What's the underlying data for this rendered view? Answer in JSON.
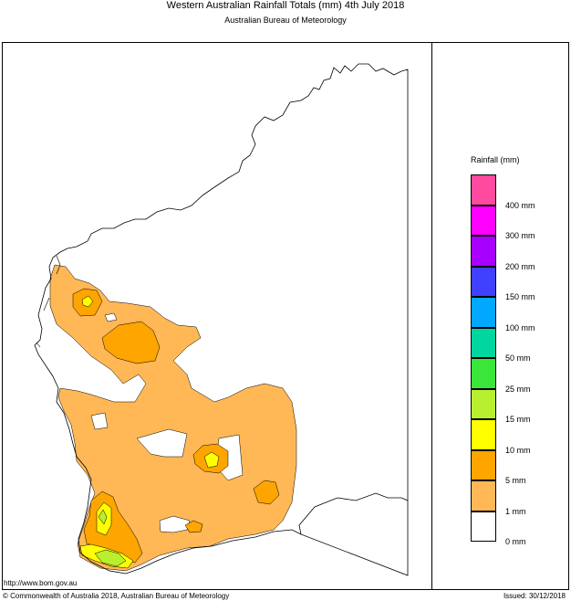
{
  "header": {
    "title": "Western Australian Rainfall Totals (mm) 4th July 2018",
    "subtitle": "Australian Bureau of Meteorology"
  },
  "legend": {
    "title": "Rainfall (mm)",
    "bins": [
      {
        "color": "#ff4aa0"
      },
      {
        "color": "#ff00ff",
        "label": "400 mm"
      },
      {
        "color": "#a800ff",
        "label": "300 mm"
      },
      {
        "color": "#4040ff",
        "label": "200 mm"
      },
      {
        "color": "#00a8ff",
        "label": "150 mm"
      },
      {
        "color": "#00d6a0",
        "label": "100 mm"
      },
      {
        "color": "#39e639",
        "label": "50 mm"
      },
      {
        "color": "#b8f030",
        "label": "25 mm"
      },
      {
        "color": "#ffff00",
        "label": "15 mm"
      },
      {
        "color": "#ffa500",
        "label": "10 mm"
      },
      {
        "color": "#ffb855",
        "label": "5 mm"
      },
      {
        "color": "#ffffff",
        "label": "1 mm"
      }
    ],
    "bottom_label": "0 mm"
  },
  "footer": {
    "url": "http://www.bom.gov.au",
    "copyright": "© Commonwealth of Australia 2018, Australian Bureau of Meteorology",
    "issued": "Issued: 30/12/2018"
  },
  "colors": {
    "light_orange": "#ffb855",
    "orange": "#ffa500",
    "yellow": "#ffff00",
    "green": "#b8f030",
    "coast": "#000000"
  }
}
